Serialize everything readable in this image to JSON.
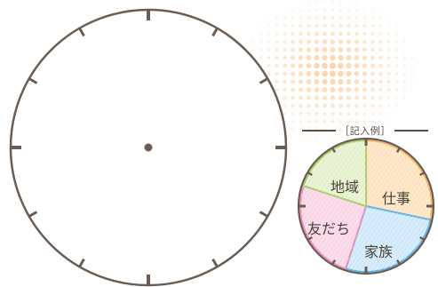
{
  "example": {
    "label": "［記入例］",
    "segments": [
      {
        "label": "仕事",
        "color": "#f6b15a",
        "fill": "#fde3c0"
      },
      {
        "label": "家族",
        "color": "#5cb3e8",
        "fill": "#cfe9fa"
      },
      {
        "label": "友だち",
        "color": "#ec8bb8",
        "fill": "#fad6e6"
      },
      {
        "label": "地域",
        "color": "#a9cf68",
        "fill": "#e4f1cc"
      }
    ]
  },
  "colors": {
    "clock_outline": "#6b5d54",
    "dot_pattern": "#fbd2a6"
  }
}
